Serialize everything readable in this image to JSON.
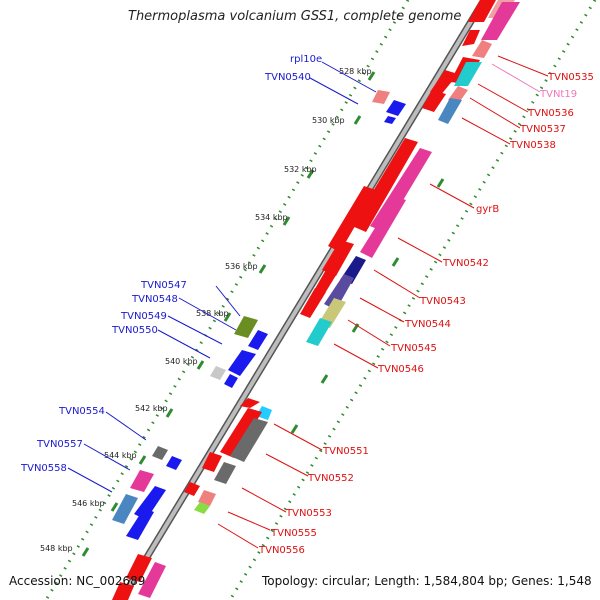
{
  "title": "Thermoplasma volcanium GSS1, complete genome",
  "accession": "Accession: NC_002689",
  "topology": "Topology: circular; Length: 1,584,804 bp; Genes: 1,548",
  "colors": {
    "backbone": "#9a9a9a",
    "dots": "#2e8b2e",
    "plus_strand_label": "#1a1acc",
    "minus_strand_label": "#dd1111",
    "trna_label": "#ee77bb"
  },
  "ticks": [
    "528 kbp",
    "530 kbp",
    "532 kbp",
    "534 kbp",
    "536 kbp",
    "538 kbp",
    "540 kbp",
    "542 kbp",
    "544 kbp",
    "546 kbp",
    "548 kbp"
  ],
  "labels_left": [
    "rpl10e",
    "TVN0540",
    "TVN0547",
    "TVN0548",
    "TVN0549",
    "TVN0550",
    "TVN0554",
    "TVN0557",
    "TVN0558"
  ],
  "labels_right": [
    "TVN0535",
    "TVNt19",
    "TVN0536",
    "TVN0537",
    "TVN0538",
    "gyrB",
    "TVN0542",
    "TVN0543",
    "TVN0544",
    "TVN0545",
    "TVN0546",
    "TVN0551",
    "TVN0552",
    "TVN0553",
    "TVN0555",
    "TVN0556"
  ]
}
